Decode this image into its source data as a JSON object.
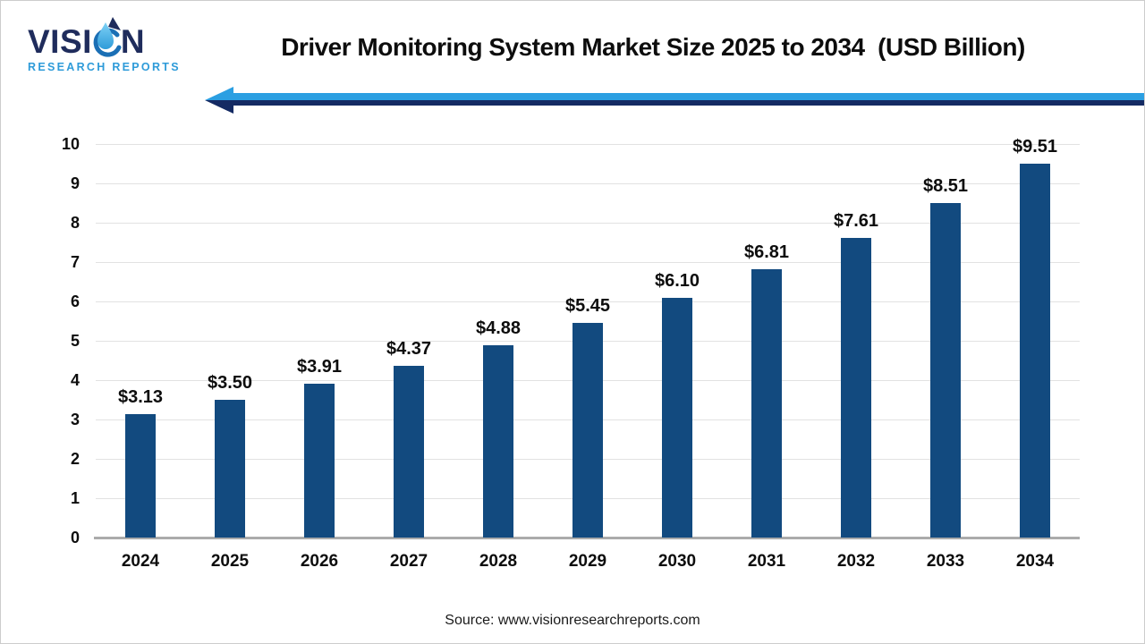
{
  "logo": {
    "wordmark_prefix": "VISI",
    "wordmark_suffix": "N",
    "subtitle": "RESEARCH REPORTS",
    "wordmark_color": "#1f2c5c",
    "subtitle_color": "#2e9bd9",
    "droplet_light_color": "#4db3ea",
    "droplet_mid_color": "#1a6fb5",
    "droplet_dark_color": "#1f2c5c"
  },
  "header": {
    "arrow": {
      "light_color": "#2b9fe2",
      "dark_color": "#142a63"
    }
  },
  "chart_data": {
    "type": "bar",
    "title": "Driver Monitoring System Market Size 2025 to 2034  (USD Billion)",
    "categories": [
      "2024",
      "2025",
      "2026",
      "2027",
      "2028",
      "2029",
      "2030",
      "2031",
      "2032",
      "2033",
      "2034"
    ],
    "values": [
      3.13,
      3.5,
      3.91,
      4.37,
      4.88,
      5.45,
      6.1,
      6.81,
      7.61,
      8.51,
      9.51
    ],
    "value_labels": [
      "$3.13",
      "$3.50",
      "$3.91",
      "$4.37",
      "$4.88",
      "$5.45",
      "$6.10",
      "$6.81",
      "$7.61",
      "$8.51",
      "$9.51"
    ],
    "xlabel": "",
    "ylabel": "",
    "ylim": [
      0,
      10
    ],
    "yticks": [
      0,
      1,
      2,
      3,
      4,
      5,
      6,
      7,
      8,
      9,
      10
    ],
    "grid": true,
    "legend": "none",
    "bar_color": "#124a7f",
    "gridline_color": "#e2e2e2",
    "axis_line_color": "#ababab"
  },
  "footer": {
    "source": "Source: www.visionresearchreports.com"
  }
}
